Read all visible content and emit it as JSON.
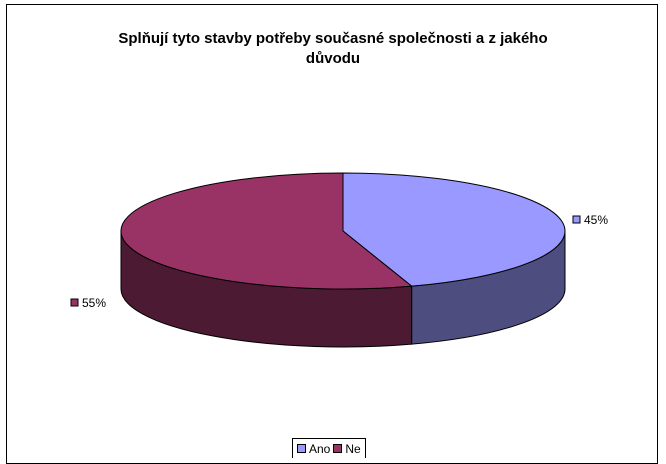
{
  "chart_data": {
    "type": "pie",
    "title_lines": [
      "Splňují tyto stavby potřeby současné společnosti a z jakého",
      "důvodu"
    ],
    "categories": [
      "Ano",
      "Ne"
    ],
    "values": [
      45,
      55
    ],
    "data_labels": [
      "45%",
      "55%"
    ],
    "legend_placement": "bottom",
    "colors": {
      "Ano": {
        "top": "#9999ff",
        "side": "#4d4d80"
      },
      "Ne": {
        "top": "#993366",
        "side": "#4d1a33"
      }
    },
    "three_d": true
  }
}
